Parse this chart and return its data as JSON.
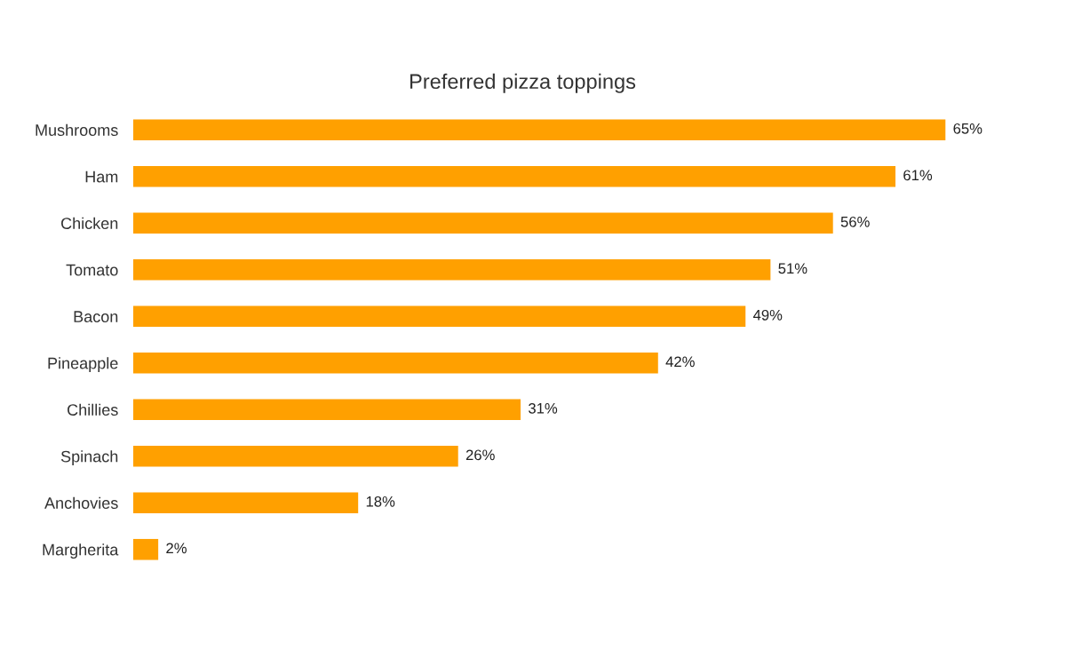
{
  "chart_data": {
    "type": "bar",
    "orientation": "horizontal",
    "title": "Preferred pizza toppings",
    "categories": [
      "Mushrooms",
      "Ham",
      "Chicken",
      "Tomato",
      "Bacon",
      "Pineapple",
      "Chillies",
      "Spinach",
      "Anchovies",
      "Margherita"
    ],
    "values": [
      65,
      61,
      56,
      51,
      49,
      42,
      31,
      26,
      18,
      2
    ],
    "value_labels": [
      "65%",
      "61%",
      "56%",
      "51%",
      "49%",
      "42%",
      "31%",
      "26%",
      "18%",
      "2%"
    ],
    "color": "#ffa000",
    "tick_labels": "y",
    "grid": false,
    "legend": false
  }
}
